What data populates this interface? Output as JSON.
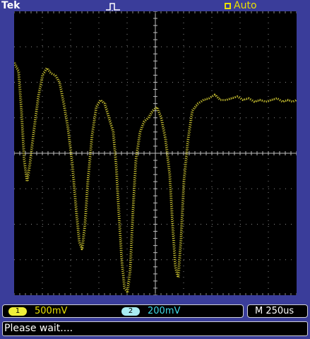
{
  "header": {
    "brand": "Tek",
    "trigger_status": "Auto",
    "trigger_status_icon": "trigger-ready-icon",
    "trigger_position_icon": "pulse-icon"
  },
  "channels": {
    "ch1": {
      "number": "1",
      "scale": "500mV",
      "color": "#e8e000"
    },
    "ch2": {
      "number": "2",
      "scale": "200mV",
      "color": "#40d8e8"
    }
  },
  "timebase": {
    "scale": "M 250us"
  },
  "message": "Please wait....",
  "colors": {
    "bezel": "#3a3d9a",
    "screen": "#000000",
    "trace": "#c8c030",
    "grid": "#8a8a8a"
  },
  "trace": {
    "channel": "1",
    "description_units": "divisions",
    "x_divisions": 10,
    "y_divisions": 8,
    "points": [
      [
        0.0,
        2.55
      ],
      [
        0.15,
        2.3
      ],
      [
        0.25,
        1.2
      ],
      [
        0.35,
        -0.2
      ],
      [
        0.45,
        -0.8
      ],
      [
        0.55,
        -0.3
      ],
      [
        0.7,
        0.7
      ],
      [
        0.85,
        1.6
      ],
      [
        1.0,
        2.2
      ],
      [
        1.15,
        2.4
      ],
      [
        1.3,
        2.25
      ],
      [
        1.45,
        2.2
      ],
      [
        1.6,
        2.0
      ],
      [
        1.75,
        1.4
      ],
      [
        1.9,
        0.7
      ],
      [
        2.05,
        -0.3
      ],
      [
        2.2,
        -1.7
      ],
      [
        2.3,
        -2.5
      ],
      [
        2.4,
        -2.7
      ],
      [
        2.5,
        -2.0
      ],
      [
        2.6,
        -0.8
      ],
      [
        2.75,
        0.5
      ],
      [
        2.9,
        1.3
      ],
      [
        3.05,
        1.5
      ],
      [
        3.2,
        1.4
      ],
      [
        3.35,
        1.0
      ],
      [
        3.5,
        0.6
      ],
      [
        3.6,
        -0.3
      ],
      [
        3.7,
        -1.7
      ],
      [
        3.8,
        -3.0
      ],
      [
        3.9,
        -3.8
      ],
      [
        4.0,
        -3.9
      ],
      [
        4.1,
        -3.3
      ],
      [
        4.2,
        -1.6
      ],
      [
        4.3,
        -0.2
      ],
      [
        4.45,
        0.6
      ],
      [
        4.6,
        0.9
      ],
      [
        4.75,
        1.0
      ],
      [
        4.9,
        1.2
      ],
      [
        5.05,
        1.3
      ],
      [
        5.2,
        1.0
      ],
      [
        5.35,
        0.4
      ],
      [
        5.5,
        -0.6
      ],
      [
        5.6,
        -2.0
      ],
      [
        5.7,
        -3.2
      ],
      [
        5.8,
        -3.5
      ],
      [
        5.9,
        -2.4
      ],
      [
        6.0,
        -0.8
      ],
      [
        6.15,
        0.4
      ],
      [
        6.3,
        1.2
      ],
      [
        6.5,
        1.4
      ],
      [
        6.7,
        1.5
      ],
      [
        6.9,
        1.55
      ],
      [
        7.1,
        1.65
      ],
      [
        7.3,
        1.5
      ],
      [
        7.5,
        1.5
      ],
      [
        7.7,
        1.55
      ],
      [
        7.9,
        1.6
      ],
      [
        8.1,
        1.5
      ],
      [
        8.3,
        1.55
      ],
      [
        8.5,
        1.45
      ],
      [
        8.7,
        1.5
      ],
      [
        8.9,
        1.45
      ],
      [
        9.1,
        1.5
      ],
      [
        9.3,
        1.55
      ],
      [
        9.5,
        1.45
      ],
      [
        9.7,
        1.5
      ],
      [
        9.85,
        1.45
      ],
      [
        10.0,
        1.5
      ]
    ]
  }
}
